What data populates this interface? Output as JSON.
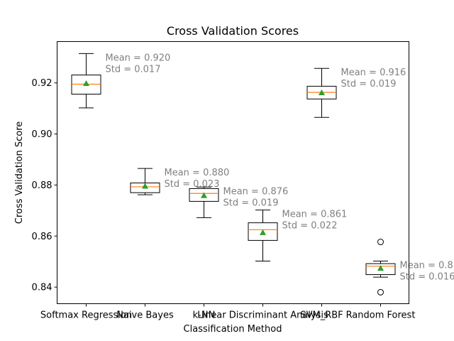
{
  "chart_data": {
    "type": "box",
    "title": "Cross Validation Scores",
    "xlabel": "Classification Method",
    "ylabel": "Cross Validation Score",
    "ylim": [
      0.8335,
      0.9362
    ],
    "yticks": [
      0.84,
      0.86,
      0.88,
      0.9,
      0.92
    ],
    "ytick_labels": [
      "0.84",
      "0.86",
      "0.88",
      "0.90",
      "0.92"
    ],
    "grid": false,
    "colors": {
      "box": "#000000",
      "median": "#ff7f0e",
      "mean_marker": "#2ca02c",
      "annotation": "#808080"
    },
    "boxes": [
      {
        "name": "Softmax Regression",
        "whisker_low": 0.9102,
        "q1": 0.9156,
        "median": 0.9195,
        "q3": 0.9231,
        "whisker_high": 0.9315,
        "mean": 0.9198,
        "outliers": [],
        "annotation": [
          "Mean = 0.920",
          "Std = 0.017"
        ]
      },
      {
        "name": "Naive Bayes",
        "whisker_low": 0.8762,
        "q1": 0.877,
        "median": 0.8793,
        "q3": 0.8808,
        "whisker_high": 0.8865,
        "mean": 0.8796,
        "outliers": [],
        "annotation": [
          "Mean = 0.880",
          "Std = 0.023"
        ]
      },
      {
        "name": "k-NN",
        "whisker_low": 0.8672,
        "q1": 0.8736,
        "median": 0.8767,
        "q3": 0.8786,
        "whisker_high": 0.8792,
        "mean": 0.8759,
        "outliers": [],
        "annotation": [
          "Mean = 0.876",
          "Std = 0.019"
        ]
      },
      {
        "name": "Linear Discriminant Analysis",
        "whisker_low": 0.8502,
        "q1": 0.8583,
        "median": 0.8625,
        "q3": 0.8652,
        "whisker_high": 0.8702,
        "mean": 0.8614,
        "outliers": [],
        "annotation": [
          "Mean = 0.861",
          "Std = 0.022"
        ]
      },
      {
        "name": "SVM_RBF",
        "whisker_low": 0.9065,
        "q1": 0.9137,
        "median": 0.9163,
        "q3": 0.9187,
        "whisker_high": 0.9257,
        "mean": 0.9162,
        "outliers": [],
        "annotation": [
          "Mean = 0.916",
          "Std = 0.019"
        ]
      },
      {
        "name": "Random Forest",
        "whisker_low": 0.8439,
        "q1": 0.8449,
        "median": 0.8482,
        "q3": 0.8492,
        "whisker_high": 0.8502,
        "mean": 0.8474,
        "outliers": [
          0.8577,
          0.838
        ],
        "annotation": [
          "Mean = 0.8",
          "Std = 0.016"
        ]
      }
    ]
  }
}
